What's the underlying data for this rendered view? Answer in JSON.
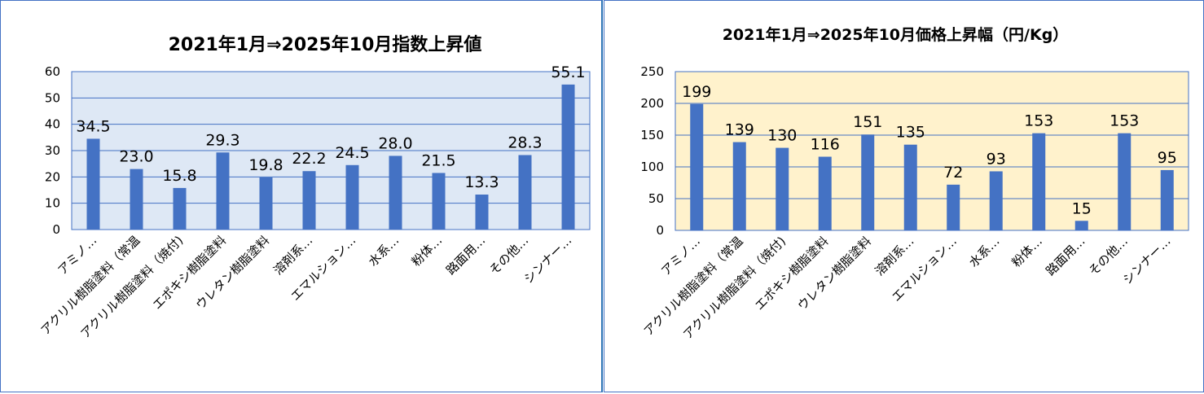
{
  "colors": {
    "bar": "#4472C4",
    "grid": "#4472C4",
    "plot_left": "#DEE8F5",
    "plot_right": "#FFF2CC",
    "frame": "#4472C4"
  },
  "chart_data": [
    {
      "type": "bar",
      "title": "2021年1月⇒2025年10月指数上昇値",
      "categories": [
        "アミノ…",
        "アクリル樹脂塗料（常温",
        "アクリル樹脂塗料（焼付)",
        "エポキシ樹脂塗料",
        "ウレタン樹脂塗料",
        "溶剤系…",
        "エマルション…",
        "水系…",
        "粉体…",
        "路面用…",
        "その他…",
        "シンナー…"
      ],
      "values": [
        34.5,
        23.0,
        15.8,
        29.3,
        19.8,
        22.2,
        24.5,
        28.0,
        21.5,
        13.3,
        28.3,
        55.1
      ],
      "value_labels": [
        "34.5",
        "23.0",
        "15.8",
        "29.3",
        "19.8",
        "22.2",
        "24.5",
        "28.0",
        "21.5",
        "13.3",
        "28.3",
        "55.1"
      ],
      "yticks": [
        "0",
        "10",
        "20",
        "30",
        "40",
        "50",
        "60"
      ],
      "ylim": [
        0,
        60
      ],
      "grid": true,
      "legend": "none"
    },
    {
      "type": "bar",
      "title": "2021年1月⇒2025年10月価格上昇幅（円/Kg）",
      "categories": [
        "アミノ…",
        "アクリル樹脂塗料（常温",
        "アクリル樹脂塗料（焼付)",
        "エポキシ樹脂塗料",
        "ウレタン樹脂塗料",
        "溶剤系…",
        "エマルション…",
        "水系…",
        "粉体…",
        "路面用…",
        "その他…",
        "シンナー…"
      ],
      "values": [
        199,
        139,
        130,
        116,
        151,
        135,
        72,
        93,
        153,
        15,
        153,
        95
      ],
      "value_labels": [
        "199",
        "139",
        "130",
        "116",
        "151",
        "135",
        "72",
        "93",
        "153",
        "15",
        "153",
        "95"
      ],
      "yticks": [
        "0",
        "50",
        "100",
        "150",
        "200",
        "250"
      ],
      "ylim": [
        0,
        250
      ],
      "grid": true,
      "legend": "none"
    }
  ]
}
